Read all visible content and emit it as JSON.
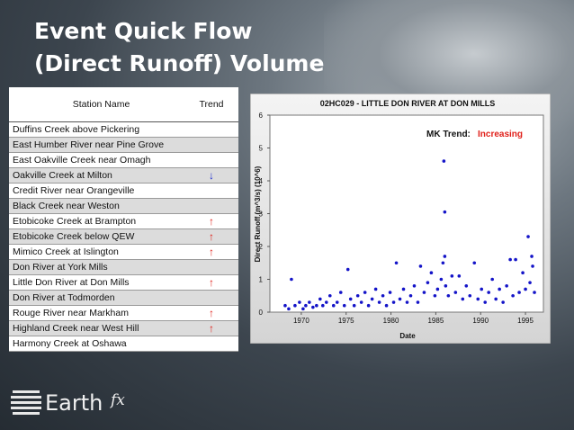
{
  "slide": {
    "title_lines": [
      "Event Quick Flow",
      "(Direct Runoff) Volume"
    ]
  },
  "table": {
    "header": [
      "Station Name",
      "Trend"
    ],
    "rows": [
      {
        "station": "Duffins Creek above Pickering"
      },
      {
        "station": "East Humber River near Pine Grove"
      },
      {
        "station": "East Oakville Creek near Omagh"
      },
      {
        "station": "Oakville Creek at Milton",
        "trend": "↓"
      },
      {
        "station": "Credit River near Orangeville"
      },
      {
        "station": "Black Creek near Weston"
      },
      {
        "station": "Etobicoke Creek at Brampton",
        "trend": "↑"
      },
      {
        "station": "Etobicoke Creek below QEW",
        "trend": "↑"
      },
      {
        "station": "Mimico Creek at Islington",
        "trend": "↑"
      },
      {
        "station": "Don River at York Mills"
      },
      {
        "station": "Little Don River at Don Mills",
        "trend": "↑"
      },
      {
        "station": "Don River at Todmorden"
      },
      {
        "station": "Rouge River near Markham",
        "trend": "↑"
      },
      {
        "station": "Highland Creek near West Hill",
        "trend": "↑"
      },
      {
        "station": "Harmony Creek at Oshawa"
      }
    ]
  },
  "chart_data": {
    "type": "scatter",
    "title": "02HC029 - LITTLE DON RIVER AT DON MILLS",
    "xlabel": "Date",
    "ylabel": "Direct Runoff (m^3/s) (10^6)",
    "annotation": {
      "label": "MK Trend:",
      "value": "Increasing"
    },
    "color": "#1414c8",
    "xlim": [
      1966.5,
      1997
    ],
    "xticks": [
      1970,
      1975,
      1980,
      1985,
      1990,
      1995
    ],
    "ylim": [
      0,
      6
    ],
    "yticks": [
      0,
      1,
      2,
      3,
      4,
      5,
      6
    ],
    "x": [
      1968.2,
      1968.6,
      1968.9,
      1969.3,
      1969.8,
      1970.2,
      1970.5,
      1970.9,
      1971.3,
      1971.7,
      1972.1,
      1972.4,
      1972.8,
      1973.2,
      1973.6,
      1974.0,
      1974.4,
      1974.8,
      1975.2,
      1975.5,
      1975.9,
      1976.3,
      1976.7,
      1977.1,
      1977.5,
      1977.9,
      1978.3,
      1978.7,
      1979.1,
      1979.5,
      1979.9,
      1980.3,
      1980.6,
      1981.0,
      1981.4,
      1981.8,
      1982.2,
      1982.6,
      1983.0,
      1983.3,
      1983.7,
      1984.1,
      1984.5,
      1984.9,
      1985.2,
      1985.6,
      1985.8,
      1985.9,
      1986.0,
      1986.0,
      1986.1,
      1986.4,
      1986.8,
      1987.2,
      1987.6,
      1988.0,
      1988.4,
      1988.8,
      1989.3,
      1989.7,
      1990.1,
      1990.5,
      1990.9,
      1991.3,
      1991.7,
      1992.1,
      1992.5,
      1992.9,
      1993.3,
      1993.6,
      1993.9,
      1994.3,
      1994.7,
      1995.0,
      1995.3,
      1995.5,
      1995.7,
      1995.8,
      1996.0
    ],
    "values": [
      0.2,
      0.1,
      1.0,
      0.2,
      0.3,
      0.1,
      0.2,
      0.3,
      0.15,
      0.2,
      0.4,
      0.2,
      0.3,
      0.5,
      0.2,
      0.3,
      0.6,
      0.2,
      1.3,
      0.4,
      0.2,
      0.5,
      0.3,
      0.6,
      0.2,
      0.4,
      0.7,
      0.3,
      0.5,
      0.2,
      0.6,
      0.3,
      1.5,
      0.4,
      0.7,
      0.3,
      0.5,
      0.8,
      0.3,
      1.4,
      0.6,
      0.9,
      1.2,
      0.5,
      0.7,
      1.0,
      1.5,
      4.6,
      3.05,
      1.7,
      0.8,
      0.5,
      1.1,
      0.6,
      1.1,
      0.4,
      0.8,
      0.5,
      1.5,
      0.4,
      0.7,
      0.3,
      0.6,
      1.0,
      0.4,
      0.7,
      0.3,
      0.8,
      1.6,
      0.5,
      1.6,
      0.6,
      1.2,
      0.7,
      2.3,
      0.9,
      1.7,
      1.4,
      0.6
    ]
  },
  "logo": {
    "name": "Earth",
    "suffix": "fx"
  }
}
